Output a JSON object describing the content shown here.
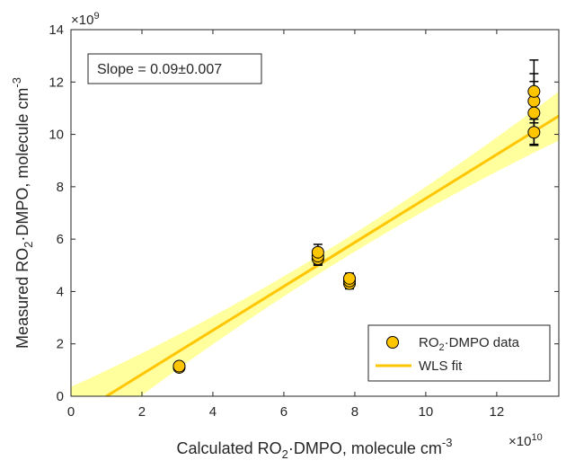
{
  "chart_data": {
    "type": "scatter",
    "xlabel": "Calculated RO2·DMPO, molecule cm-3",
    "xlabel_parts": {
      "pre": "Calculated RO",
      "sub": "2",
      "mid": "·DMPO, molecule  cm",
      "sup": "-3"
    },
    "ylabel_parts": {
      "pre": "Measured RO",
      "sub": "2",
      "mid": "·DMPO, molecule cm",
      "sup": "-3"
    },
    "x_multiplier": {
      "base": "×10",
      "exp": "10"
    },
    "y_multiplier": {
      "base": "×10",
      "exp": "9"
    },
    "xlim": [
      0,
      13.75
    ],
    "ylim": [
      0,
      14
    ],
    "xticks": [
      0,
      2,
      4,
      6,
      8,
      10,
      12
    ],
    "yticks": [
      0,
      2,
      4,
      6,
      8,
      10,
      12,
      14
    ],
    "grid": false,
    "annotation": "Slope = 0.09±0.007",
    "legend": {
      "placement": "bottom-right",
      "entries": [
        {
          "pre": "RO",
          "sub": "2",
          "post": "·DMPO data"
        },
        {
          "pre": "WLS fit",
          "sub": "",
          "post": ""
        }
      ]
    },
    "colors": {
      "marker": "#FFC600",
      "line": "#FFC600",
      "band": "#FFFF9E",
      "axis": "#262626"
    },
    "series": [
      {
        "name": "RO2·DMPO data",
        "points": [
          {
            "x": 3.05,
            "y": 1.1,
            "err": 0.08
          },
          {
            "x": 3.05,
            "y": 1.15,
            "err": 0.08
          },
          {
            "x": 6.96,
            "y": 5.25,
            "err": 0.25
          },
          {
            "x": 6.96,
            "y": 5.35,
            "err": 0.3
          },
          {
            "x": 6.96,
            "y": 5.5,
            "err": 0.3
          },
          {
            "x": 7.85,
            "y": 4.3,
            "err": 0.2
          },
          {
            "x": 7.85,
            "y": 4.4,
            "err": 0.2
          },
          {
            "x": 7.85,
            "y": 4.5,
            "err": 0.2
          },
          {
            "x": 13.05,
            "y": 10.08,
            "err": 0.5
          },
          {
            "x": 13.05,
            "y": 10.82,
            "err": 1.2
          },
          {
            "x": 13.05,
            "y": 11.27,
            "err": 1.05
          },
          {
            "x": 13.05,
            "y": 11.64,
            "err": 1.2
          }
        ]
      }
    ],
    "fit": {
      "name": "WLS fit",
      "x": [
        1.0,
        13.75
      ],
      "y": [
        0,
        10.7
      ],
      "band_upper": [
        0.9,
        11.7
      ],
      "band_lower": [
        -0.9,
        9.7
      ]
    }
  }
}
